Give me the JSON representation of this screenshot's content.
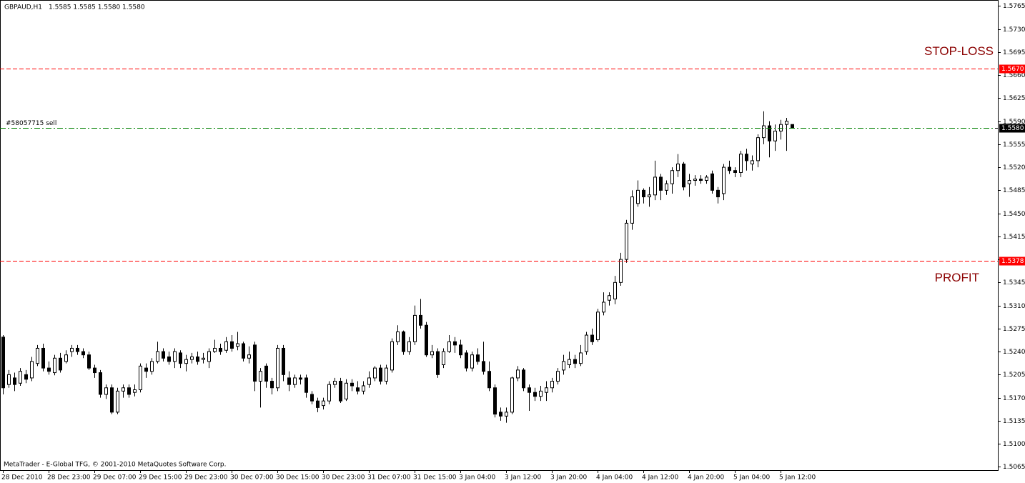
{
  "chart_data": {
    "type": "candlestick",
    "symbol": "GBPAUD,H1",
    "quote": "1.5585 1.5585 1.5580 1.5580",
    "footer": "MetaTrader - E-Global TFG, © 2001-2010 MetaQuotes Software Corp.",
    "categories": [
      "28 Dec 2010",
      null,
      null,
      null,
      null,
      null,
      null,
      null,
      "28 Dec 23:00",
      null,
      null,
      null,
      null,
      null,
      null,
      null,
      "29 Dec 07:00",
      null,
      null,
      null,
      null,
      null,
      null,
      null,
      "29 Dec 15:00",
      null,
      null,
      null,
      null,
      null,
      null,
      null,
      "29 Dec 23:00",
      null,
      null,
      null,
      null,
      null,
      null,
      null,
      "30 Dec 07:00",
      null,
      null,
      null,
      null,
      null,
      null,
      null,
      "30 Dec 15:00",
      null,
      null,
      null,
      null,
      null,
      null,
      null,
      "30 Dec 23:00",
      null,
      null,
      null,
      null,
      null,
      null,
      null,
      "31 Dec 07:00",
      null,
      null,
      null,
      null,
      null,
      null,
      null,
      "31 Dec 15:00",
      null,
      null,
      null,
      null,
      null,
      null,
      null,
      "3 Jan 04:00",
      null,
      null,
      null,
      null,
      null,
      null,
      null,
      "3 Jan 12:00",
      null,
      null,
      null,
      null,
      null,
      null,
      null,
      "3 Jan 20:00",
      null,
      null,
      null,
      null,
      null,
      null,
      null,
      "4 Jan 04:00",
      null,
      null,
      null,
      null,
      null,
      null,
      null,
      "4 Jan 12:00",
      null,
      null,
      null,
      null,
      null,
      null,
      null,
      "4 Jan 20:00",
      null,
      null,
      null,
      null,
      null,
      null,
      null,
      "5 Jan 04:00",
      null,
      null,
      null,
      null,
      null,
      null,
      null,
      "5 Jan 12:00",
      null,
      null
    ],
    "open": [
      1.5262,
      1.519,
      1.52,
      1.5192,
      1.5205,
      1.52,
      1.5222,
      1.5245,
      1.5215,
      1.5208,
      1.523,
      1.5225,
      1.524,
      1.5245,
      1.524,
      1.5235,
      1.5215,
      1.5208,
      1.5175,
      1.5185,
      1.5148,
      1.518,
      1.5185,
      1.5178,
      1.5182,
      1.5215,
      1.521,
      1.5225,
      1.524,
      1.5232,
      1.5225,
      1.5238,
      1.5222,
      1.5228,
      1.5232,
      1.5228,
      1.5225,
      1.524,
      1.5245,
      1.5242,
      1.5255,
      1.5248,
      1.5252,
      1.523,
      1.525,
      1.5195,
      1.5218,
      1.5195,
      1.5185,
      1.5245,
      1.52,
      1.519,
      1.52,
      1.52,
      1.5175,
      1.5165,
      1.5158,
      1.5165,
      1.519,
      1.5195,
      1.5168,
      1.5192,
      1.5185,
      1.518,
      1.519,
      1.52,
      1.5215,
      1.5195,
      1.5212,
      1.5255,
      1.527,
      1.524,
      1.5255,
      1.5295,
      1.528,
      1.5235,
      1.524,
      1.522,
      1.524,
      1.5255,
      1.525,
      1.5238,
      1.5215,
      1.5235,
      1.5225,
      1.521,
      1.5185,
      1.5148,
      1.5142,
      1.5148,
      1.52,
      1.5212,
      1.5185,
      1.5178,
      1.5172,
      1.5178,
      1.5185,
      1.5195,
      1.5212,
      1.522,
      1.5228,
      1.5222,
      1.524,
      1.5265,
      1.5258,
      1.53,
      1.5318,
      1.532,
      1.5345,
      1.538,
      1.5435,
      1.5465,
      1.5485,
      1.5475,
      1.5478,
      1.5505,
      1.5485,
      1.5495,
      1.5515,
      1.5525,
      1.5495,
      1.55,
      1.5502,
      1.55,
      1.551,
      1.5485,
      1.548,
      1.552,
      1.5515,
      1.5512,
      1.554,
      1.5525,
      1.553,
      1.5565,
      1.5583,
      1.556,
      1.5575,
      1.5585,
      1.5585
    ],
    "high": [
      1.5265,
      1.5212,
      1.5208,
      1.5215,
      1.5212,
      1.5232,
      1.525,
      1.5252,
      1.5225,
      1.5235,
      1.5238,
      1.5242,
      1.525,
      1.525,
      1.5245,
      1.524,
      1.522,
      1.5212,
      1.519,
      1.519,
      1.5185,
      1.519,
      1.519,
      1.519,
      1.5222,
      1.5222,
      1.523,
      1.5255,
      1.5245,
      1.524,
      1.5245,
      1.5242,
      1.5235,
      1.5238,
      1.524,
      1.5238,
      1.5245,
      1.5258,
      1.5252,
      1.5262,
      1.5265,
      1.527,
      1.5255,
      1.5248,
      1.5255,
      1.5215,
      1.5222,
      1.52,
      1.525,
      1.525,
      1.521,
      1.5205,
      1.5205,
      1.5205,
      1.518,
      1.517,
      1.517,
      1.5195,
      1.52,
      1.52,
      1.5198,
      1.5198,
      1.5195,
      1.5195,
      1.521,
      1.5218,
      1.522,
      1.522,
      1.526,
      1.528,
      1.5272,
      1.5262,
      1.531,
      1.532,
      1.5285,
      1.525,
      1.5245,
      1.5245,
      1.5265,
      1.5262,
      1.5258,
      1.5242,
      1.524,
      1.5245,
      1.5255,
      1.5225,
      1.519,
      1.5155,
      1.5155,
      1.5202,
      1.5218,
      1.5215,
      1.519,
      1.5185,
      1.5188,
      1.5195,
      1.52,
      1.5215,
      1.5235,
      1.524,
      1.5235,
      1.525,
      1.527,
      1.5275,
      1.5305,
      1.533,
      1.533,
      1.5355,
      1.539,
      1.544,
      1.5485,
      1.55,
      1.5488,
      1.549,
      1.553,
      1.551,
      1.55,
      1.552,
      1.554,
      1.5528,
      1.551,
      1.5508,
      1.5508,
      1.5508,
      1.5515,
      1.549,
      1.5525,
      1.553,
      1.552,
      1.5545,
      1.5548,
      1.5538,
      1.557,
      1.5605,
      1.559,
      1.5585,
      1.5592,
      1.5595,
      1.5585
    ],
    "low": [
      1.5175,
      1.5185,
      1.518,
      1.5188,
      1.5192,
      1.5195,
      1.5218,
      1.521,
      1.5205,
      1.5204,
      1.5208,
      1.5222,
      1.5232,
      1.5235,
      1.523,
      1.5212,
      1.52,
      1.517,
      1.5168,
      1.5145,
      1.5145,
      1.517,
      1.517,
      1.5172,
      1.5178,
      1.52,
      1.5205,
      1.5222,
      1.5225,
      1.522,
      1.5215,
      1.5215,
      1.521,
      1.5222,
      1.522,
      1.5222,
      1.5215,
      1.5238,
      1.5235,
      1.5238,
      1.524,
      1.5242,
      1.5225,
      1.5222,
      1.518,
      1.5155,
      1.5185,
      1.5175,
      1.518,
      1.5195,
      1.518,
      1.5185,
      1.519,
      1.517,
      1.516,
      1.5148,
      1.5152,
      1.516,
      1.5185,
      1.5162,
      1.5165,
      1.518,
      1.5175,
      1.5175,
      1.5185,
      1.5195,
      1.519,
      1.519,
      1.5208,
      1.525,
      1.5235,
      1.5235,
      1.525,
      1.5275,
      1.5232,
      1.523,
      1.52,
      1.5215,
      1.5238,
      1.5238,
      1.523,
      1.521,
      1.521,
      1.522,
      1.5205,
      1.518,
      1.514,
      1.5135,
      1.5132,
      1.5145,
      1.5195,
      1.518,
      1.515,
      1.5165,
      1.5165,
      1.5165,
      1.5178,
      1.519,
      1.5205,
      1.5215,
      1.5215,
      1.5218,
      1.5235,
      1.525,
      1.5255,
      1.5295,
      1.531,
      1.5312,
      1.534,
      1.5375,
      1.5425,
      1.546,
      1.5465,
      1.546,
      1.547,
      1.547,
      1.5478,
      1.548,
      1.5505,
      1.5485,
      1.5475,
      1.5492,
      1.5495,
      1.5495,
      1.548,
      1.5465,
      1.547,
      1.551,
      1.5505,
      1.5505,
      1.5515,
      1.5515,
      1.552,
      1.5555,
      1.5535,
      1.5545,
      1.5562,
      1.5545,
      1.558
    ],
    "close": [
      1.5185,
      1.5205,
      1.519,
      1.521,
      1.5198,
      1.5225,
      1.5245,
      1.5215,
      1.521,
      1.523,
      1.5212,
      1.5235,
      1.5245,
      1.524,
      1.5235,
      1.5215,
      1.5208,
      1.5175,
      1.5185,
      1.5148,
      1.518,
      1.5185,
      1.5175,
      1.5182,
      1.5218,
      1.521,
      1.5225,
      1.524,
      1.523,
      1.5225,
      1.524,
      1.5222,
      1.5228,
      1.5232,
      1.5225,
      1.523,
      1.524,
      1.5245,
      1.524,
      1.5255,
      1.5245,
      1.5252,
      1.523,
      1.5235,
      1.5195,
      1.521,
      1.5195,
      1.5185,
      1.5245,
      1.5205,
      1.519,
      1.52,
      1.5198,
      1.5178,
      1.5165,
      1.5155,
      1.5165,
      1.519,
      1.5195,
      1.5165,
      1.5192,
      1.5188,
      1.518,
      1.5188,
      1.52,
      1.5215,
      1.5195,
      1.5215,
      1.5255,
      1.527,
      1.524,
      1.5255,
      1.5295,
      1.528,
      1.5235,
      1.524,
      1.5205,
      1.524,
      1.5255,
      1.525,
      1.5235,
      1.5215,
      1.5235,
      1.5225,
      1.521,
      1.5185,
      1.5145,
      1.5142,
      1.5148,
      1.52,
      1.5212,
      1.5185,
      1.5178,
      1.5172,
      1.518,
      1.5185,
      1.5195,
      1.521,
      1.5225,
      1.5228,
      1.5222,
      1.5238,
      1.5265,
      1.5255,
      1.53,
      1.5315,
      1.5325,
      1.5345,
      1.538,
      1.5435,
      1.5475,
      1.5485,
      1.5475,
      1.5478,
      1.5505,
      1.5485,
      1.5495,
      1.5515,
      1.5525,
      1.549,
      1.55,
      1.5502,
      1.55,
      1.5505,
      1.5485,
      1.5475,
      1.552,
      1.5515,
      1.5512,
      1.554,
      1.553,
      1.553,
      1.5565,
      1.5583,
      1.556,
      1.5575,
      1.5585,
      1.559,
      1.558
    ],
    "up_color": "#ffffff",
    "down_color": "#000000",
    "ylim": [
      1.5061,
      1.5773
    ],
    "yticks": [
      1.5765,
      {
        "value": 1.573,
        "label": "1.5730"
      },
      1.5695,
      {
        "value": 1.566,
        "label": "1.5660"
      },
      1.5625,
      {
        "value": 1.559,
        "label": "1.5590"
      },
      1.5555,
      {
        "value": 1.552,
        "label": "1.5520"
      },
      1.5485,
      {
        "value": 1.545,
        "label": "1.5450"
      },
      1.5415,
      {
        "value": 1.538,
        "label": "1.5380"
      },
      1.5345,
      {
        "value": 1.531,
        "label": "1.5310"
      },
      1.5275,
      {
        "value": 1.524,
        "label": "1.5240"
      },
      1.5205,
      {
        "value": 1.517,
        "label": "1.5170"
      },
      1.5135,
      {
        "value": 1.51,
        "label": "1.5100"
      },
      1.5065
    ],
    "grid": false,
    "levels": [
      {
        "name": "STOP-LOSS",
        "value": 1.567,
        "label": "1.5670",
        "color": "#ff0000"
      },
      {
        "name": "PROFIT",
        "value": 1.5378,
        "label": "1.5378",
        "color": "#ff0000"
      }
    ],
    "order": {
      "name": "#58057715 sell",
      "value": 1.558,
      "color": "#008000"
    },
    "bid": {
      "value": 1.558,
      "label": "1.5580",
      "color": "#000000"
    }
  }
}
